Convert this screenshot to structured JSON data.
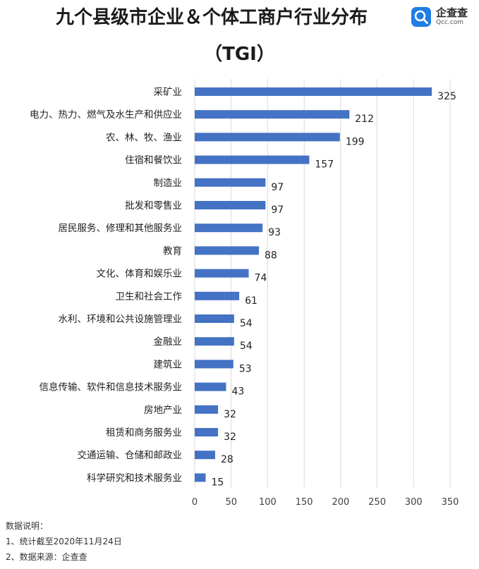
{
  "title": "九个县级市企业＆个体工商户行业分布",
  "subtitle": "（TGI）",
  "logo": {
    "name": "企查查",
    "domain": "Qcc.com",
    "icon": "qcc-search-logo-icon",
    "color": "#1f7de6"
  },
  "notes": {
    "heading": "数据说明：",
    "lines": [
      "1、统计截至2020年11月24日",
      "2、数据来源：企查查"
    ]
  },
  "chart_data": {
    "type": "bar",
    "orientation": "horizontal",
    "title": "九个县级市企业＆个体工商户行业分布",
    "subtitle": "（TGI）",
    "categories": [
      "采矿业",
      "电力、热力、燃气及水生产和供应业",
      "农、林、牧、渔业",
      "住宿和餐饮业",
      "制造业",
      "批发和零售业",
      "居民服务、修理和其他服务业",
      "教育",
      "文化、体育和娱乐业",
      "卫生和社会工作",
      "水利、环境和公共设施管理业",
      "金融业",
      "建筑业",
      "信息传输、软件和信息技术服务业",
      "房地产业",
      "租赁和商务服务业",
      "交通运输、仓储和邮政业",
      "科学研究和技术服务业"
    ],
    "values": [
      325,
      212,
      199,
      157,
      97,
      97,
      93,
      88,
      74,
      61,
      54,
      54,
      53,
      43,
      32,
      32,
      28,
      15
    ],
    "xlim": [
      0,
      350
    ],
    "xticks": [
      0,
      50,
      100,
      150,
      200,
      250,
      300,
      350
    ],
    "grid": "vertical",
    "bar_color": "#4472c4",
    "data_labels": true
  }
}
